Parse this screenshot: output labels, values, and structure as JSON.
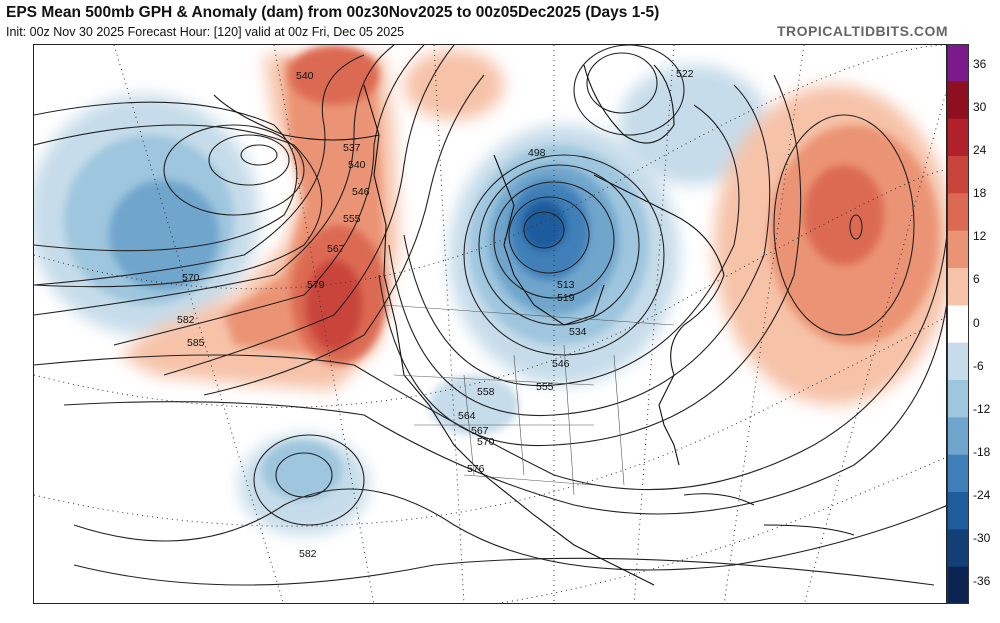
{
  "header": {
    "title": "EPS Mean 500mb GPH & Anomaly (dam) from 00z30Nov2025 to 00z05Dec2025 (Days 1-5)",
    "subtitle": "Init: 00z Nov 30 2025   Forecast Hour: [120]   valid at 00z Fri, Dec 05 2025",
    "brand": "TROPICALTIDBITS.COM"
  },
  "colorbar": {
    "labels": [
      "36",
      "30",
      "24",
      "18",
      "12",
      "6",
      "0",
      "-6",
      "-12",
      "-18",
      "-24",
      "-30",
      "-36"
    ],
    "colors": [
      "#7b1a8c",
      "#8e0f1f",
      "#b0212a",
      "#c9443a",
      "#dc6a53",
      "#eb9475",
      "#f6c2a8",
      "#ffffff",
      "#c6dcea",
      "#9ec6de",
      "#6fa5cc",
      "#3f7fb8",
      "#1f5c9d",
      "#133f77",
      "#0b2350"
    ]
  },
  "contours": {
    "labels": [
      "540",
      "537",
      "540",
      "546",
      "555",
      "567",
      "570",
      "579",
      "582",
      "585",
      "522",
      "498",
      "513",
      "519",
      "534",
      "546",
      "555",
      "558",
      "564",
      "567",
      "570",
      "576",
      "582"
    ]
  }
}
